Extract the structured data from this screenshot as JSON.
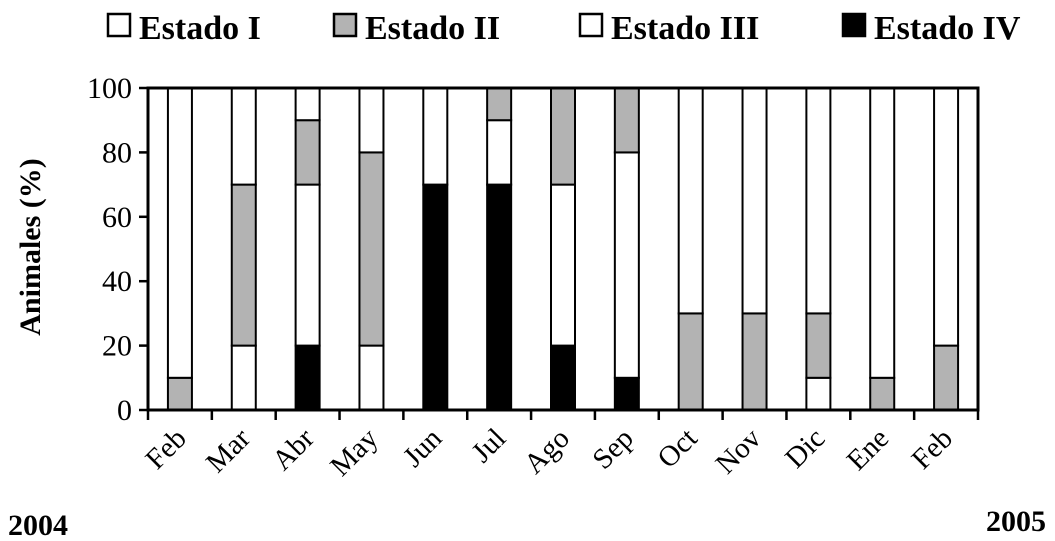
{
  "chart_data": {
    "type": "bar",
    "stacked": true,
    "categories": [
      "Feb",
      "Mar",
      "Abr",
      "May",
      "Jun",
      "Jul",
      "Ago",
      "Sep",
      "Oct",
      "Nov",
      "Dic",
      "Ene",
      "Feb"
    ],
    "series": [
      {
        "name": "Estado IV",
        "color": "#000000",
        "values": [
          0,
          0,
          20,
          0,
          70,
          70,
          20,
          10,
          0,
          0,
          0,
          0,
          0
        ]
      },
      {
        "name": "Estado III",
        "color": "#ffffff",
        "values": [
          0,
          20,
          50,
          20,
          30,
          20,
          50,
          70,
          0,
          0,
          10,
          0,
          0
        ]
      },
      {
        "name": "Estado II",
        "color": "#b3b3b3",
        "values": [
          10,
          50,
          20,
          60,
          0,
          10,
          30,
          20,
          30,
          30,
          20,
          10,
          20
        ]
      },
      {
        "name": "Estado I",
        "color": "#ffffff",
        "values": [
          90,
          30,
          10,
          20,
          0,
          0,
          0,
          0,
          70,
          70,
          70,
          90,
          80
        ]
      }
    ],
    "legend": [
      {
        "name": "Estado I",
        "color": "#ffffff"
      },
      {
        "name": "Estado II",
        "color": "#b3b3b3"
      },
      {
        "name": "Estado III",
        "color": "#ffffff"
      },
      {
        "name": "Estado IV",
        "color": "#000000"
      }
    ],
    "legend_position": "top",
    "ylabel": "Animales (%)",
    "xlabel": "",
    "yticks": [
      "0",
      "20",
      "40",
      "60",
      "80",
      "100"
    ],
    "ylim": [
      0,
      100
    ],
    "grid": false,
    "year_labels": {
      "start": "2004",
      "end": "2005"
    }
  }
}
